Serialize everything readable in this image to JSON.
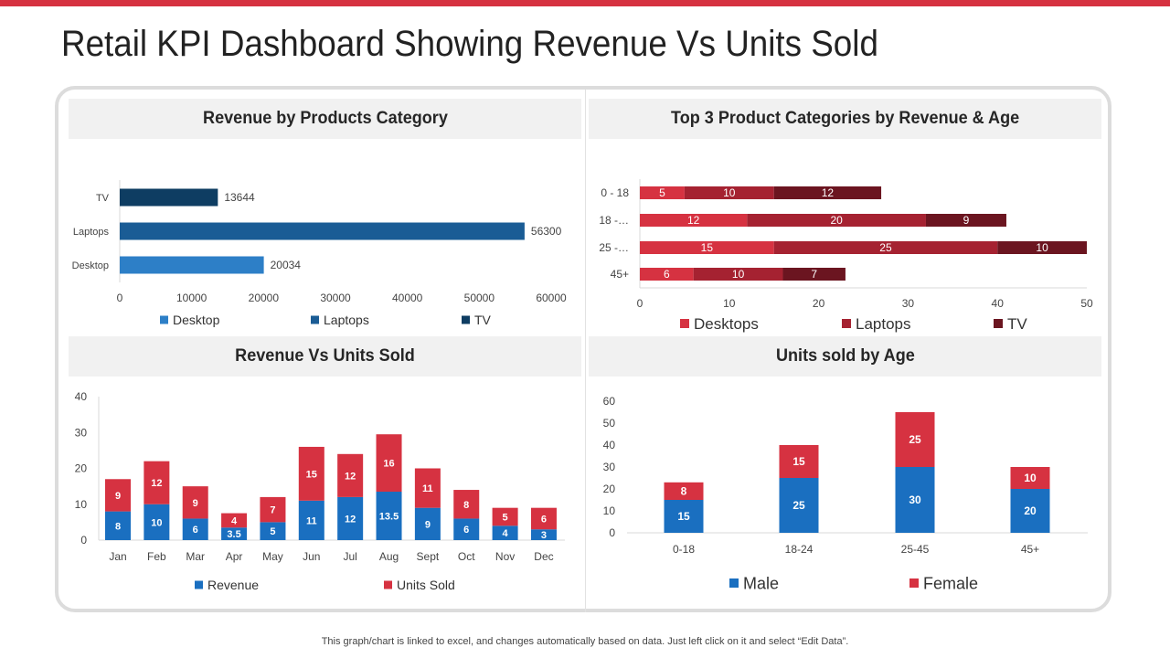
{
  "page": {
    "title": "Retail KPI Dashboard Showing Revenue Vs Units Sold",
    "footer": "This graph/chart is linked to excel,  and changes automatically based on data. Just left click on it and select “Edit Data”.",
    "accent_color": "#d63241"
  },
  "chart_data": [
    {
      "id": "revenue-by-category",
      "type": "bar",
      "orientation": "horizontal",
      "title": "Revenue by Products Category",
      "categories": [
        "TV",
        "Laptops",
        "Desktop"
      ],
      "values": [
        13644,
        56300,
        20034
      ],
      "value_labels": [
        "13644",
        "56300",
        "20034"
      ],
      "colors": [
        "#0e3d62",
        "#1a5c95",
        "#2d7fc7"
      ],
      "legend": [
        "Desktop",
        "Laptops",
        "TV"
      ],
      "legend_colors": [
        "#2d7fc7",
        "#1a5c95",
        "#0e3d62"
      ],
      "xlim": [
        0,
        60000
      ],
      "xticks": [
        "0",
        "10000",
        "20000",
        "30000",
        "40000",
        "50000",
        "60000"
      ]
    },
    {
      "id": "top3-by-age",
      "type": "bar",
      "orientation": "horizontal",
      "stacked": true,
      "title": "Top 3 Product Categories by Revenue & Age",
      "categories": [
        "0 - 18",
        "18 -…",
        "25 -…",
        "45+"
      ],
      "series": [
        {
          "name": "Desktops",
          "values": [
            5,
            12,
            15,
            6
          ],
          "color": "#d63241"
        },
        {
          "name": "Laptops",
          "values": [
            10,
            20,
            25,
            10
          ],
          "color": "#a52231"
        },
        {
          "name": "TV",
          "values": [
            12,
            9,
            10,
            7
          ],
          "color": "#6b1520"
        }
      ],
      "xlim": [
        0,
        50
      ],
      "xticks": [
        "0",
        "10",
        "20",
        "30",
        "40",
        "50"
      ]
    },
    {
      "id": "revenue-vs-units",
      "type": "bar",
      "stacked": true,
      "title": "Revenue Vs Units Sold",
      "categories": [
        "Jan",
        "Feb",
        "Mar",
        "Apr",
        "May",
        "Jun",
        "Jul",
        "Aug",
        "Sept",
        "Oct",
        "Nov",
        "Dec"
      ],
      "series": [
        {
          "name": "Revenue",
          "values": [
            8,
            10,
            6,
            3.5,
            5,
            11,
            12,
            13.5,
            9,
            6,
            4,
            3
          ],
          "color": "#1a6fc0"
        },
        {
          "name": "Units Sold",
          "values": [
            9,
            12,
            9,
            4,
            7,
            15,
            12,
            16,
            11,
            8,
            5,
            6
          ],
          "color": "#d63241"
        }
      ],
      "ylim": [
        0,
        40
      ],
      "yticks": [
        "0",
        "10",
        "20",
        "30",
        "40"
      ]
    },
    {
      "id": "units-by-age",
      "type": "bar",
      "stacked": true,
      "title": "Units sold by Age",
      "categories": [
        "0-18",
        "18-24",
        "25-45",
        "45+"
      ],
      "series": [
        {
          "name": "Male",
          "values": [
            15,
            25,
            30,
            20
          ],
          "color": "#1a6fc0"
        },
        {
          "name": "Female",
          "values": [
            8,
            15,
            25,
            10
          ],
          "color": "#d63241"
        }
      ],
      "ylim": [
        0,
        60
      ],
      "yticks": [
        "0",
        "10",
        "20",
        "30",
        "40",
        "50",
        "60"
      ]
    }
  ]
}
